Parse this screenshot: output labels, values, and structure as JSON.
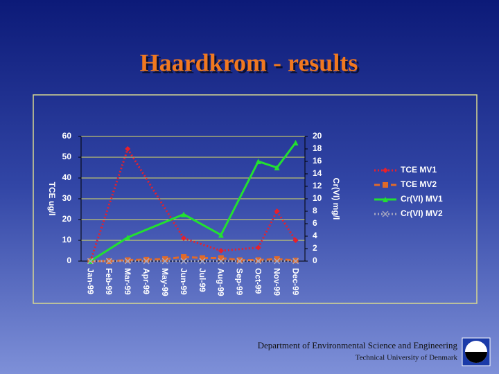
{
  "chart_data": {
    "type": "line",
    "title": "Haardkrom - results",
    "categories": [
      "Jan-99",
      "Feb-99",
      "Mar-99",
      "Apr-99",
      "May-99",
      "Jun-99",
      "Jul-99",
      "Aug-99",
      "Sep-99",
      "Oct-99",
      "Nov-99",
      "Dec-99"
    ],
    "ylabel": "TCE ug/l",
    "y2label": "Cr(VI) mg/l",
    "ylim": [
      0,
      60
    ],
    "yticks": [
      0,
      10,
      20,
      30,
      40,
      50,
      60
    ],
    "y2lim": [
      0,
      20
    ],
    "y2ticks": [
      0,
      2,
      4,
      6,
      8,
      10,
      12,
      14,
      16,
      18,
      20
    ],
    "grid": true,
    "legend": "right",
    "series": [
      {
        "name": "TCE MV1",
        "color": "#e8202a",
        "dash": "dotted",
        "marker": "diamond",
        "values": [
          0,
          null,
          54,
          null,
          null,
          11,
          null,
          5,
          null,
          6.5,
          24,
          10
        ]
      },
      {
        "name": "TCE MV2",
        "color": "#e06a2a",
        "dash": "dashed",
        "marker": "square",
        "values": [
          0,
          0,
          0.5,
          0.7,
          1,
          2,
          1.5,
          1.5,
          0.5,
          0.5,
          1,
          0.3
        ]
      },
      {
        "name": "Cr(VI) MV1",
        "color": "#22e030",
        "dash": "solid",
        "marker": "triangle",
        "axis": "y2",
        "values": [
          0,
          null,
          3.8,
          null,
          null,
          7.5,
          null,
          4.2,
          null,
          16,
          15,
          19
        ]
      },
      {
        "name": "Cr(VI) MV2",
        "color": "#a8a8c0",
        "dash": "dotted",
        "marker": "x",
        "axis": "y2",
        "values": [
          0,
          0,
          0,
          0,
          0,
          0,
          0,
          0,
          0,
          0,
          0,
          0
        ]
      }
    ]
  },
  "footer": {
    "department": "Department of Environmental Science and Engineering",
    "university": "Technical University of Denmark"
  }
}
